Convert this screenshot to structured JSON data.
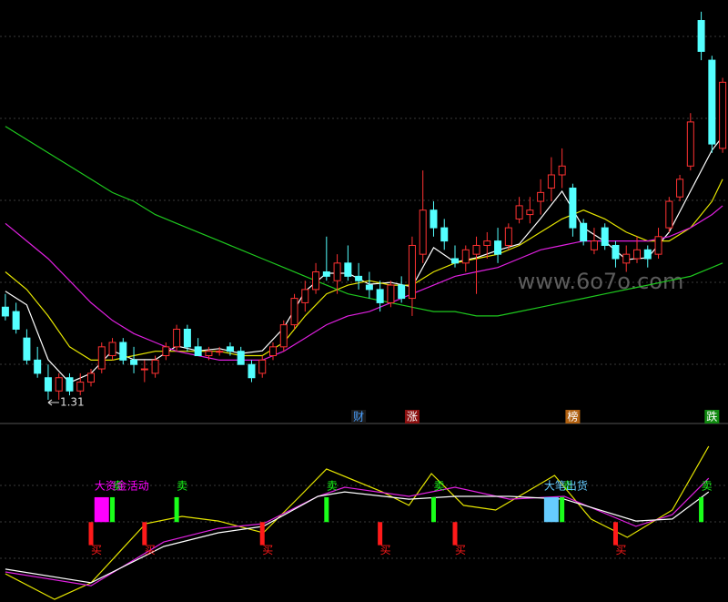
{
  "chart_data": {
    "type": "candlestick",
    "xlim": [
      -0.5,
      67.5
    ],
    "ylim": [
      1.25,
      2.2
    ],
    "open": [
      1.52,
      1.51,
      1.45,
      1.4,
      1.36,
      1.33,
      1.36,
      1.33,
      1.35,
      1.38,
      1.41,
      1.44,
      1.4,
      1.38,
      1.37,
      1.41,
      1.43,
      1.47,
      1.43,
      1.41,
      1.42,
      1.43,
      1.42,
      1.39,
      1.37,
      1.41,
      1.43,
      1.48,
      1.53,
      1.56,
      1.6,
      1.58,
      1.62,
      1.59,
      1.57,
      1.56,
      1.53,
      1.57,
      1.54,
      1.64,
      1.74,
      1.7,
      1.63,
      1.62,
      1.64,
      1.66,
      1.67,
      1.66,
      1.72,
      1.73,
      1.76,
      1.79,
      1.82,
      1.79,
      1.71,
      1.65,
      1.7,
      1.66,
      1.62,
      1.63,
      1.65,
      1.64,
      1.7,
      1.77,
      1.84,
      2.17,
      2.08,
      1.88
    ],
    "high": [
      1.55,
      1.53,
      1.47,
      1.43,
      1.39,
      1.37,
      1.37,
      1.37,
      1.38,
      1.44,
      1.45,
      1.45,
      1.43,
      1.4,
      1.41,
      1.44,
      1.48,
      1.48,
      1.45,
      1.43,
      1.43,
      1.44,
      1.43,
      1.4,
      1.41,
      1.44,
      1.49,
      1.55,
      1.58,
      1.62,
      1.68,
      1.64,
      1.66,
      1.62,
      1.6,
      1.58,
      1.58,
      1.59,
      1.68,
      1.83,
      1.76,
      1.72,
      1.66,
      1.66,
      1.68,
      1.69,
      1.7,
      1.71,
      1.77,
      1.77,
      1.81,
      1.86,
      1.88,
      1.8,
      1.72,
      1.7,
      1.71,
      1.67,
      1.66,
      1.68,
      1.66,
      1.7,
      1.77,
      1.82,
      1.96,
      2.19,
      2.09,
      2.04
    ],
    "low": [
      1.49,
      1.46,
      1.39,
      1.36,
      1.31,
      1.31,
      1.32,
      1.32,
      1.34,
      1.37,
      1.4,
      1.39,
      1.37,
      1.35,
      1.36,
      1.4,
      1.42,
      1.42,
      1.41,
      1.4,
      1.41,
      1.41,
      1.39,
      1.35,
      1.36,
      1.4,
      1.42,
      1.47,
      1.51,
      1.55,
      1.58,
      1.55,
      1.58,
      1.56,
      1.54,
      1.51,
      1.52,
      1.53,
      1.5,
      1.62,
      1.68,
      1.65,
      1.61,
      1.6,
      1.55,
      1.63,
      1.62,
      1.65,
      1.71,
      1.71,
      1.73,
      1.76,
      1.79,
      1.68,
      1.66,
      1.64,
      1.65,
      1.61,
      1.6,
      1.62,
      1.61,
      1.63,
      1.69,
      1.76,
      1.83,
      2.08,
      1.87,
      1.87
    ],
    "close": [
      1.5,
      1.47,
      1.4,
      1.37,
      1.33,
      1.36,
      1.33,
      1.35,
      1.37,
      1.43,
      1.44,
      1.4,
      1.39,
      1.38,
      1.4,
      1.43,
      1.47,
      1.43,
      1.41,
      1.42,
      1.42,
      1.42,
      1.39,
      1.36,
      1.4,
      1.43,
      1.48,
      1.54,
      1.56,
      1.6,
      1.59,
      1.62,
      1.59,
      1.58,
      1.56,
      1.53,
      1.57,
      1.54,
      1.66,
      1.74,
      1.7,
      1.67,
      1.62,
      1.65,
      1.66,
      1.67,
      1.64,
      1.7,
      1.75,
      1.74,
      1.78,
      1.82,
      1.84,
      1.7,
      1.67,
      1.67,
      1.66,
      1.63,
      1.64,
      1.65,
      1.63,
      1.68,
      1.76,
      1.81,
      1.94,
      2.1,
      1.89,
      2.03
    ],
    "up_color": "#ff3232",
    "down_color": "#54ffff",
    "lines": [
      {
        "color": "#ffffff",
        "x": [
          0,
          2,
          4,
          6,
          8,
          10,
          12,
          14,
          16,
          18,
          20,
          22,
          24,
          26,
          28,
          30,
          32,
          34,
          36,
          38,
          40,
          42,
          44,
          46,
          48,
          50,
          52,
          54,
          56,
          58,
          60,
          62,
          64,
          66,
          67
        ],
        "values": [
          1.556,
          1.525,
          1.401,
          1.349,
          1.37,
          1.421,
          1.401,
          1.401,
          1.432,
          1.421,
          1.426,
          1.415,
          1.421,
          1.473,
          1.556,
          1.597,
          1.597,
          1.572,
          1.576,
          1.566,
          1.655,
          1.622,
          1.632,
          1.649,
          1.663,
          1.721,
          1.783,
          1.7,
          1.669,
          1.628,
          1.632,
          1.69,
          1.783,
          1.876,
          1.907
        ]
      },
      {
        "color": "#e6e600",
        "x": [
          0,
          2,
          4,
          6,
          8,
          10,
          12,
          14,
          16,
          18,
          20,
          22,
          24,
          26,
          28,
          30,
          32,
          34,
          36,
          38,
          40,
          42,
          44,
          46,
          48,
          50,
          52,
          54,
          56,
          58,
          60,
          62,
          64,
          66,
          67
        ],
        "values": [
          1.6,
          1.56,
          1.5,
          1.43,
          1.4,
          1.4,
          1.41,
          1.42,
          1.42,
          1.42,
          1.42,
          1.41,
          1.41,
          1.44,
          1.5,
          1.55,
          1.57,
          1.58,
          1.57,
          1.57,
          1.6,
          1.62,
          1.63,
          1.64,
          1.66,
          1.69,
          1.72,
          1.74,
          1.72,
          1.69,
          1.67,
          1.67,
          1.7,
          1.76,
          1.81
        ]
      },
      {
        "color": "#e020e0",
        "x": [
          0,
          2,
          4,
          6,
          8,
          10,
          12,
          14,
          16,
          18,
          20,
          22,
          24,
          26,
          28,
          30,
          32,
          34,
          36,
          38,
          40,
          42,
          44,
          46,
          48,
          50,
          52,
          54,
          56,
          58,
          60,
          62,
          64,
          66,
          67
        ],
        "values": [
          1.71,
          1.67,
          1.63,
          1.58,
          1.53,
          1.49,
          1.46,
          1.44,
          1.42,
          1.41,
          1.4,
          1.4,
          1.4,
          1.42,
          1.45,
          1.48,
          1.5,
          1.51,
          1.53,
          1.55,
          1.57,
          1.59,
          1.6,
          1.61,
          1.63,
          1.65,
          1.66,
          1.67,
          1.67,
          1.67,
          1.67,
          1.68,
          1.7,
          1.73,
          1.75
        ]
      },
      {
        "color": "#1ec81e",
        "x": [
          0,
          2,
          4,
          6,
          8,
          10,
          12,
          14,
          16,
          18,
          20,
          22,
          24,
          26,
          28,
          30,
          32,
          34,
          36,
          38,
          40,
          42,
          44,
          46,
          48,
          50,
          52,
          54,
          56,
          58,
          60,
          62,
          64,
          66,
          67
        ],
        "values": [
          1.93,
          1.9,
          1.87,
          1.84,
          1.81,
          1.78,
          1.76,
          1.73,
          1.71,
          1.69,
          1.67,
          1.65,
          1.63,
          1.61,
          1.59,
          1.57,
          1.55,
          1.54,
          1.53,
          1.52,
          1.51,
          1.51,
          1.5,
          1.5,
          1.51,
          1.52,
          1.53,
          1.54,
          1.55,
          1.56,
          1.57,
          1.58,
          1.59,
          1.61,
          1.62
        ]
      }
    ],
    "low_annotation": {
      "value": 1.31,
      "x": 4
    },
    "markers": [
      {
        "text": "财",
        "x": 33,
        "color": "#4aa0ff",
        "background": "#1a1a1a"
      },
      {
        "text": "涨",
        "x": 38,
        "color": "#ffffff",
        "background": "#8b1010"
      },
      {
        "text": "榜",
        "x": 53,
        "color": "#ffffff",
        "background": "#b06010"
      },
      {
        "text": "跌",
        "x": 66,
        "color": "#ffffff",
        "background": "#108a10"
      }
    ],
    "watermark": "www.6o7o.com",
    "indicator": {
      "ylim": [
        0,
        100
      ],
      "lines": [
        {
          "color": "#e6e600",
          "x": [
            0,
            4.6,
            8,
            13.1,
            16.5,
            19.9,
            24.1,
            27.5,
            30,
            35.2,
            37.7,
            39.8,
            42.8,
            45.8,
            51.3,
            54.7,
            58.1,
            62.3,
            65.7
          ],
          "values": [
            15.9,
            1.5,
            10.8,
            44.1,
            48.2,
            45.6,
            39,
            59.5,
            74.9,
            62,
            54.4,
            72.3,
            54.4,
            51.8,
            71.3,
            46.7,
            36.4,
            51.8,
            87.7
          ]
        },
        {
          "color": "#e020e0",
          "x": [
            0,
            8,
            14.8,
            19.9,
            24.1,
            29.2,
            31.7,
            37.7,
            42,
            47.1,
            52.2,
            58.9,
            62.3,
            65.7
          ],
          "values": [
            16.9,
            9.2,
            33.8,
            41.5,
            44.1,
            59.5,
            64.6,
            59.5,
            64.6,
            57.9,
            59.5,
            42.6,
            49.2,
            69.7
          ]
        },
        {
          "color": "#ffffff",
          "x": [
            0,
            8,
            14.8,
            19.9,
            24.1,
            29.2,
            31.7,
            37.7,
            42,
            47.1,
            52.2,
            58.9,
            62.3,
            65.7
          ],
          "values": [
            18.5,
            10.8,
            31.3,
            39,
            42.6,
            59.5,
            62,
            57.9,
            59.5,
            59.5,
            57.9,
            45.6,
            46.7,
            62
          ]
        }
      ],
      "signal_base": 45,
      "buy": {
        "label": "买",
        "color": "#ff1a1a",
        "x": [
          8,
          13,
          24,
          35,
          42,
          57
        ],
        "values": [
          32,
          32,
          32,
          32,
          32,
          32
        ]
      },
      "sell": {
        "label": "卖",
        "color": "#1aff1a",
        "x": [
          10,
          16,
          30,
          40,
          52,
          65
        ],
        "values": [
          59,
          59,
          59,
          59,
          59,
          59
        ]
      },
      "blocks": [
        {
          "text": "大资金活动",
          "x": 9,
          "value": 59,
          "color": "#ff00ff"
        },
        {
          "text": "大笔出货",
          "x": 51,
          "value": 59,
          "color": "#66ccff"
        }
      ]
    }
  }
}
